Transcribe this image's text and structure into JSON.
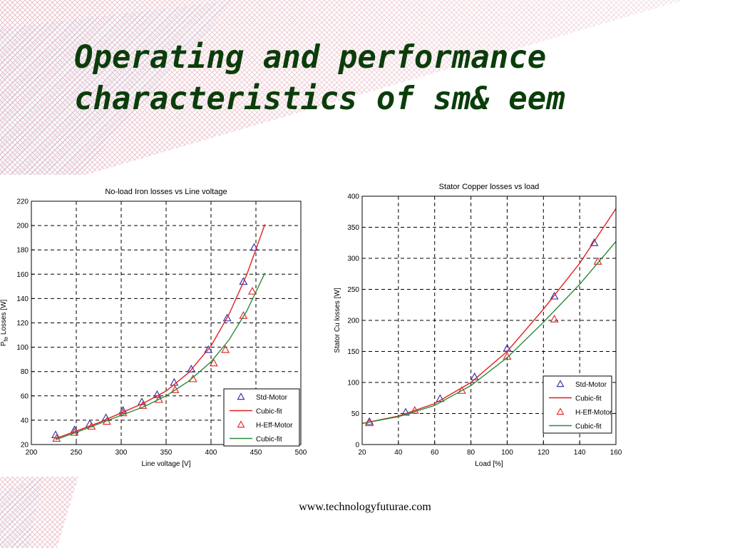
{
  "slide": {
    "title_line1": "Operating and performance",
    "title_line2": "characteristics of sm& eem",
    "footer": "www.technologyfuturae.com"
  },
  "colors": {
    "title": "#0b3d0b",
    "std": "#3a3aa8",
    "cubic_red": "#e02020",
    "heff": "#e03030",
    "cubic_green": "#2f8a3a"
  },
  "chart_data": [
    {
      "type": "line",
      "title": "No-load Iron losses vs Line voltage",
      "xlabel": "Line voltage [V]",
      "ylabel": "P",
      "ylabel_sub": "fe",
      "ylabel_rest": " Losses [W]",
      "xlim": [
        200,
        500
      ],
      "ylim": [
        20,
        220
      ],
      "xticks": [
        200,
        250,
        300,
        350,
        400,
        450,
        500
      ],
      "yticks": [
        20,
        40,
        60,
        80,
        100,
        120,
        140,
        160,
        180,
        200,
        220
      ],
      "grid": true,
      "legend_position": "bottom-right",
      "legend": [
        "Std-Motor",
        "Cubic-fit",
        "H-Eff-Motor",
        "Cubic-fit"
      ],
      "series": [
        {
          "name": "Std-Motor",
          "kind": "markers",
          "color": "#3a3aa8",
          "x": [
            227,
            248,
            265,
            283,
            302,
            323,
            340,
            359,
            378,
            397,
            418,
            436,
            448
          ],
          "y": [
            28,
            32,
            37,
            42,
            48,
            55,
            61,
            71,
            82,
            98,
            124,
            154,
            182
          ]
        },
        {
          "name": "Cubic-fit",
          "kind": "line",
          "color": "#e02020",
          "x": [
            227,
            250,
            275,
            300,
            325,
            350,
            375,
            400,
            420,
            440,
            460
          ],
          "y": [
            25,
            31,
            38,
            46,
            54,
            64,
            79,
            101,
            127,
            160,
            201
          ]
        },
        {
          "name": "H-Eff-Motor",
          "kind": "markers",
          "color": "#e03030",
          "x": [
            228,
            248,
            267,
            284,
            302,
            324,
            342,
            360,
            380,
            403,
            416,
            436,
            446
          ],
          "y": [
            25,
            30,
            35,
            39,
            46,
            52,
            57,
            65,
            74,
            87,
            98,
            126,
            146
          ]
        },
        {
          "name": "Cubic-fit",
          "kind": "line",
          "color": "#2f8a3a",
          "x": [
            227,
            250,
            275,
            300,
            325,
            350,
            375,
            400,
            420,
            440,
            460
          ],
          "y": [
            24,
            30,
            37,
            44,
            51,
            60,
            72,
            88,
            106,
            130,
            161
          ]
        }
      ]
    },
    {
      "type": "line",
      "title": "Stator Copper losses vs load",
      "xlabel": "Load [%]",
      "ylabel": "Stator Cu losses [W]",
      "xlim": [
        20,
        160
      ],
      "ylim": [
        0,
        400
      ],
      "xticks": [
        20,
        40,
        60,
        80,
        100,
        120,
        140,
        160
      ],
      "yticks": [
        0,
        50,
        100,
        150,
        200,
        250,
        300,
        350,
        400
      ],
      "grid": true,
      "legend_position": "bottom-right",
      "legend": [
        "Std-Motor",
        "Cubic-fit",
        "H-Eff-Motor",
        "Cubic-fit"
      ],
      "series": [
        {
          "name": "Std-Motor",
          "kind": "markers",
          "color": "#3a3aa8",
          "x": [
            24,
            44,
            63,
            82,
            100,
            126,
            148
          ],
          "y": [
            37,
            52,
            74,
            109,
            155,
            239,
            325
          ]
        },
        {
          "name": "Cubic-fit",
          "kind": "line",
          "color": "#e02020",
          "x": [
            20,
            40,
            60,
            80,
            100,
            120,
            140,
            160
          ],
          "y": [
            34,
            46,
            66,
            100,
            150,
            218,
            292,
            380
          ]
        },
        {
          "name": "H-Eff-Motor",
          "kind": "markers",
          "color": "#e03030",
          "x": [
            24,
            49,
            75,
            100,
            126,
            150
          ],
          "y": [
            35,
            55,
            87,
            142,
            202,
            295
          ]
        },
        {
          "name": "Cubic-fit",
          "kind": "line",
          "color": "#2f8a3a",
          "x": [
            20,
            40,
            60,
            80,
            100,
            120,
            140,
            160
          ],
          "y": [
            34,
            45,
            63,
            95,
            140,
            197,
            258,
            327
          ]
        }
      ]
    }
  ]
}
